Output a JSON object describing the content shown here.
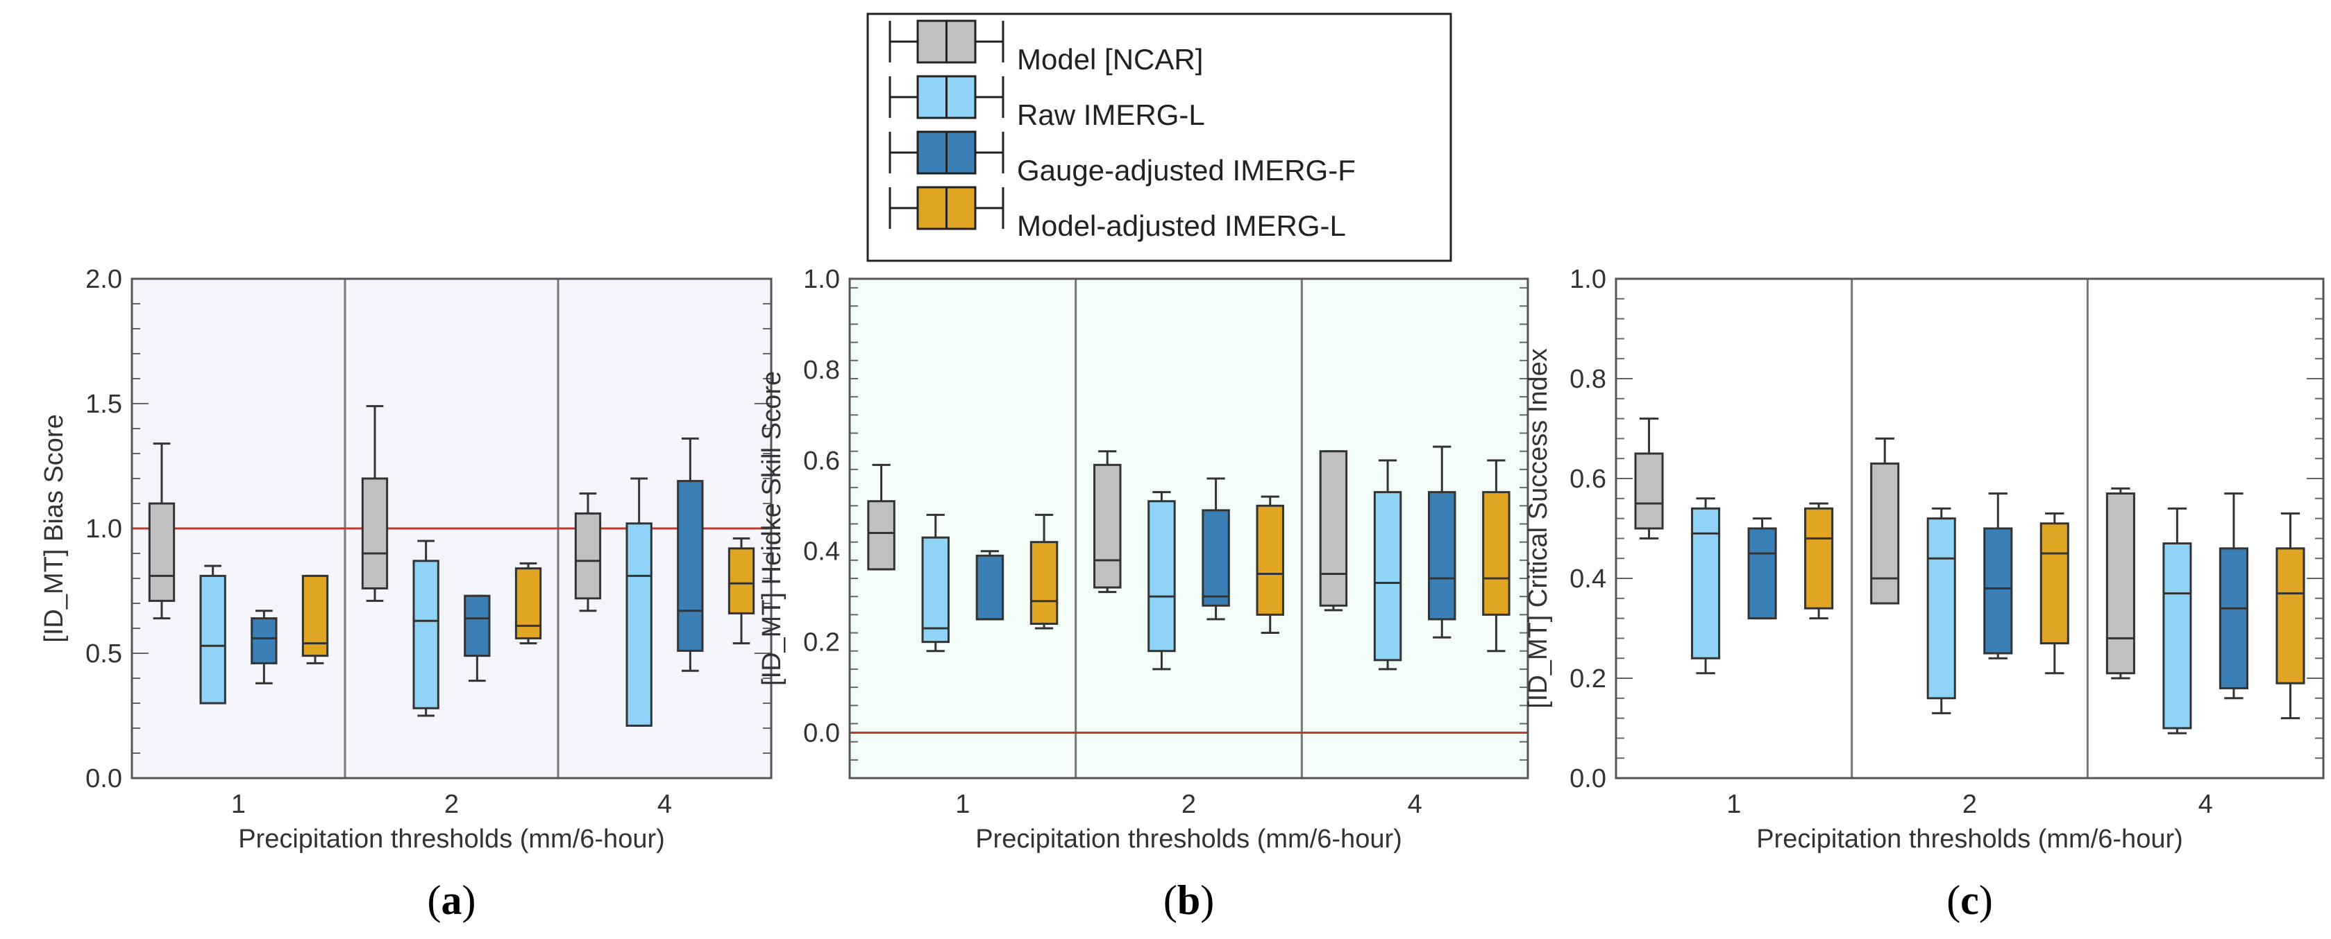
{
  "legend": [
    {
      "label": "Model [NCAR]",
      "color": "#c0c0c0"
    },
    {
      "label": "Raw IMERG-L",
      "color": "#8fd3f7"
    },
    {
      "label": "Gauge-adjusted IMERG-F",
      "color": "#3a7fb5"
    },
    {
      "label": "Model-adjusted IMERG-L",
      "color": "#e1a524"
    }
  ],
  "chart_data": [
    {
      "type": "boxplot",
      "panel_label": {
        "open": "(",
        "letter": "a",
        "close": ")"
      },
      "ylabel": "[ID_MT]   Bias Score",
      "xlabel": "Precipitation thresholds (mm/6-hour)",
      "categories": [
        "1",
        "2",
        "4"
      ],
      "ylim": [
        0.0,
        2.0
      ],
      "yticks": [
        0.0,
        0.5,
        1.0,
        1.5,
        2.0
      ],
      "ytick_labels": [
        "0.0",
        "0.5",
        "1.0",
        "1.5",
        "2.0"
      ],
      "reference_line": 1.0,
      "background": "#f5f5fd",
      "series": [
        {
          "name": "Model [NCAR]",
          "boxes": [
            [
              0.64,
              0.71,
              0.81,
              1.1,
              1.34
            ],
            [
              0.71,
              0.76,
              0.9,
              1.2,
              1.49
            ],
            [
              0.67,
              0.72,
              0.87,
              1.06,
              1.14
            ]
          ]
        },
        {
          "name": "Raw IMERG-L",
          "boxes": [
            [
              0.3,
              0.3,
              0.53,
              0.81,
              0.85
            ],
            [
              0.25,
              0.28,
              0.63,
              0.87,
              0.95
            ],
            [
              0.21,
              0.21,
              0.81,
              1.02,
              1.2
            ]
          ]
        },
        {
          "name": "Gauge-adjusted IMERG-F",
          "boxes": [
            [
              0.38,
              0.46,
              0.56,
              0.64,
              0.67
            ],
            [
              0.39,
              0.49,
              0.64,
              0.73,
              0.73
            ],
            [
              0.43,
              0.51,
              0.67,
              1.19,
              1.36
            ]
          ]
        },
        {
          "name": "Model-adjusted IMERG-L",
          "boxes": [
            [
              0.46,
              0.49,
              0.54,
              0.81,
              0.81
            ],
            [
              0.54,
              0.56,
              0.61,
              0.84,
              0.86
            ],
            [
              0.54,
              0.66,
              0.78,
              0.92,
              0.96
            ]
          ]
        }
      ]
    },
    {
      "type": "boxplot",
      "panel_label": {
        "open": "(",
        "letter": "b",
        "close": ")"
      },
      "ylabel": "[ID_MT]   Heidke Skill Score",
      "xlabel": "Precipitation thresholds (mm/6-hour)",
      "categories": [
        "1",
        "2",
        "4"
      ],
      "ylim": [
        -0.1,
        1.0
      ],
      "yticks": [
        0.0,
        0.2,
        0.4,
        0.6,
        0.8,
        1.0
      ],
      "ytick_labels": [
        "0.0",
        "0.2",
        "0.4",
        "0.6",
        "0.8",
        "1.0"
      ],
      "reference_line": 0.0,
      "background": "#f3fdf7",
      "series": [
        {
          "name": "Model [NCAR]",
          "boxes": [
            [
              0.36,
              0.36,
              0.44,
              0.51,
              0.59
            ],
            [
              0.31,
              0.32,
              0.38,
              0.59,
              0.62
            ],
            [
              0.27,
              0.28,
              0.35,
              0.62,
              0.62
            ]
          ]
        },
        {
          "name": "Raw IMERG-L",
          "boxes": [
            [
              0.18,
              0.2,
              0.23,
              0.43,
              0.48
            ],
            [
              0.14,
              0.18,
              0.3,
              0.51,
              0.53
            ],
            [
              0.14,
              0.16,
              0.33,
              0.53,
              0.6
            ]
          ]
        },
        {
          "name": "Gauge-adjusted IMERG-F",
          "boxes": [
            [
              0.25,
              0.25,
              0.25,
              0.39,
              0.4
            ],
            [
              0.25,
              0.28,
              0.3,
              0.49,
              0.56
            ],
            [
              0.21,
              0.25,
              0.34,
              0.53,
              0.63
            ]
          ]
        },
        {
          "name": "Model-adjusted IMERG-L",
          "boxes": [
            [
              0.23,
              0.24,
              0.29,
              0.42,
              0.48
            ],
            [
              0.22,
              0.26,
              0.35,
              0.5,
              0.52
            ],
            [
              0.18,
              0.26,
              0.34,
              0.53,
              0.6
            ]
          ]
        }
      ]
    },
    {
      "type": "boxplot",
      "panel_label": {
        "open": "(",
        "letter": "c",
        "close": ")"
      },
      "ylabel": "[ID_MT]   Critical Success Index",
      "xlabel": "Precipitation thresholds (mm/6-hour)",
      "categories": [
        "1",
        "2",
        "4"
      ],
      "ylim": [
        0.0,
        1.0
      ],
      "yticks": [
        0.0,
        0.2,
        0.4,
        0.6,
        0.8,
        1.0
      ],
      "ytick_labels": [
        "0.0",
        "0.2",
        "0.4",
        "0.6",
        "0.8",
        "1.0"
      ],
      "reference_line": null,
      "background": "#ffffff",
      "series": [
        {
          "name": "Model [NCAR]",
          "boxes": [
            [
              0.48,
              0.5,
              0.55,
              0.65,
              0.72
            ],
            [
              0.35,
              0.35,
              0.4,
              0.63,
              0.68
            ],
            [
              0.2,
              0.21,
              0.28,
              0.57,
              0.58
            ]
          ]
        },
        {
          "name": "Raw IMERG-L",
          "boxes": [
            [
              0.21,
              0.24,
              0.49,
              0.54,
              0.56
            ],
            [
              0.13,
              0.16,
              0.44,
              0.52,
              0.54
            ],
            [
              0.09,
              0.1,
              0.37,
              0.47,
              0.54
            ]
          ]
        },
        {
          "name": "Gauge-adjusted IMERG-F",
          "boxes": [
            [
              0.32,
              0.32,
              0.45,
              0.5,
              0.52
            ],
            [
              0.24,
              0.25,
              0.38,
              0.5,
              0.57
            ],
            [
              0.16,
              0.18,
              0.34,
              0.46,
              0.57
            ]
          ]
        },
        {
          "name": "Model-adjusted IMERG-L",
          "boxes": [
            [
              0.32,
              0.34,
              0.48,
              0.54,
              0.55
            ],
            [
              0.21,
              0.27,
              0.45,
              0.51,
              0.53
            ],
            [
              0.12,
              0.19,
              0.37,
              0.46,
              0.53
            ]
          ]
        }
      ]
    }
  ]
}
